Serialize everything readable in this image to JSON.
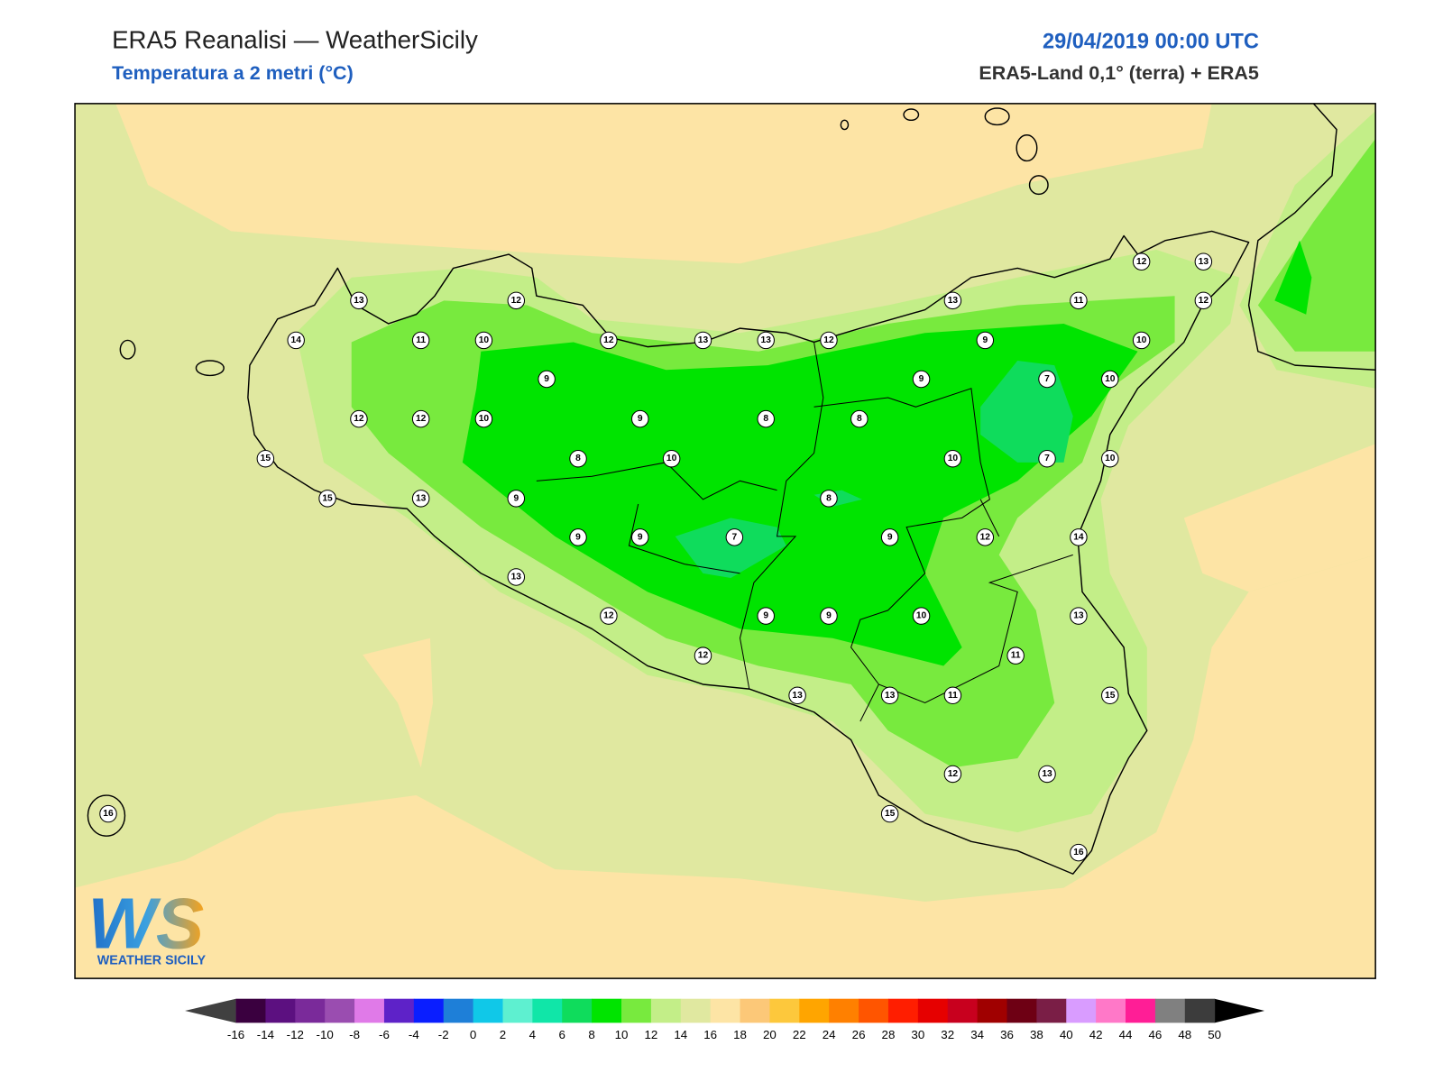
{
  "header": {
    "title": "ERA5 Reanalisi — WeatherSicily",
    "subtitle": "Temperatura a 2 metri (°C)",
    "date": "29/04/2019 00:00 UTC",
    "source": "ERA5-Land 0,1° (terra) + ERA5"
  },
  "map": {
    "stations": [
      13,
      12,
      14,
      11,
      10,
      12,
      13,
      13,
      12,
      13,
      11,
      12,
      13,
      12,
      9,
      10,
      9,
      9,
      7,
      10,
      12,
      12,
      10,
      9,
      8,
      8,
      15,
      8,
      10,
      10,
      7,
      10,
      15,
      13,
      9,
      8,
      9,
      9,
      7,
      9,
      12,
      14,
      13,
      12,
      9,
      9,
      10,
      13,
      12,
      11,
      13,
      13,
      11,
      15,
      12,
      13,
      15,
      16,
      16
    ]
  },
  "logo": {
    "text": "WS",
    "subtitle": "WEATHER SICILY"
  },
  "colorbar": {
    "ticks": [
      -16,
      -14,
      -12,
      -10,
      -8,
      -6,
      -4,
      -2,
      0,
      2,
      4,
      6,
      8,
      10,
      12,
      14,
      16,
      18,
      20,
      22,
      24,
      26,
      28,
      30,
      32,
      34,
      36,
      38,
      40,
      42,
      44,
      46,
      48,
      50
    ],
    "colors": [
      "#3a003f",
      "#5c1080",
      "#7a2a9a",
      "#9a4db0",
      "#e07ae8",
      "#5e22c8",
      "#0a1eff",
      "#1e7fd8",
      "#10c8e8",
      "#5ef0d0",
      "#10e6a8",
      "#0fdc5c",
      "#00e400",
      "#78ea3e",
      "#c3ee88",
      "#e0e8a0",
      "#fde4a5",
      "#fcc878",
      "#fdc83c",
      "#ffa500",
      "#ff8000",
      "#ff5500",
      "#ff1e00",
      "#e60000",
      "#c8001e",
      "#a00000",
      "#6e0014",
      "#7a1e46",
      "#d99cff",
      "#ff78c8",
      "#ff1e96",
      "#808080",
      "#3c3c3c"
    ],
    "under_color": "#404040",
    "over_color": "#000000"
  }
}
